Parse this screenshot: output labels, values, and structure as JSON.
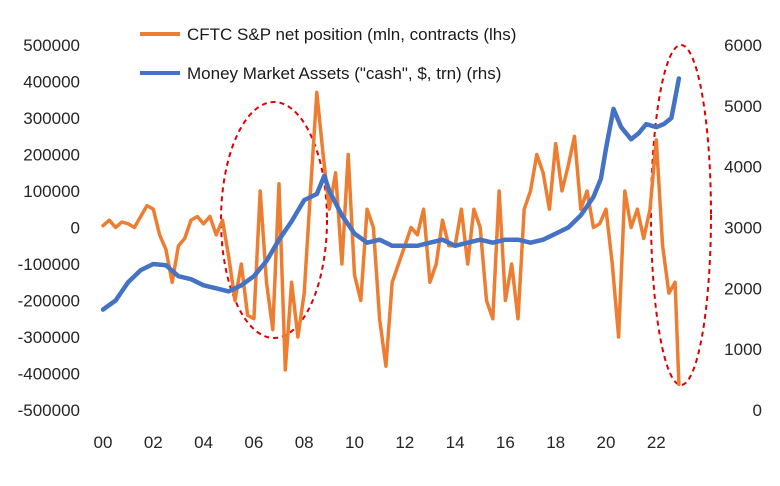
{
  "chart_data": {
    "type": "line",
    "title": "",
    "xlabel": "",
    "ylabel_left": "",
    "ylabel_right": "",
    "x_ticks": [
      "00",
      "02",
      "04",
      "06",
      "08",
      "10",
      "12",
      "14",
      "16",
      "18",
      "20",
      "22"
    ],
    "x_tick_years": [
      2000,
      2002,
      2004,
      2006,
      2008,
      2010,
      2012,
      2014,
      2016,
      2018,
      2020,
      2022
    ],
    "x_range": [
      2000,
      2023.5
    ],
    "y_left": {
      "range": [
        -500000,
        500000
      ],
      "ticks": [
        "500000",
        "400000",
        "300000",
        "200000",
        "100000",
        "0",
        "-100000",
        "-200000",
        "-300000",
        "-400000",
        "-500000"
      ],
      "tick_values": [
        500000,
        400000,
        300000,
        200000,
        100000,
        0,
        -100000,
        -200000,
        -300000,
        -400000,
        -500000
      ]
    },
    "y_right": {
      "range": [
        0,
        6000
      ],
      "ticks": [
        "6000",
        "5000",
        "4000",
        "3000",
        "2000",
        "1000",
        "0"
      ],
      "tick_values": [
        6000,
        5000,
        4000,
        3000,
        2000,
        1000,
        0
      ]
    },
    "grid": false,
    "legend_position": "top",
    "series": [
      {
        "name": "CFTC S&P net position (mln, contracts (lhs)",
        "axis": "left",
        "color": "#ED7D31",
        "x": [
          2000.0,
          2000.25,
          2000.5,
          2000.75,
          2001.0,
          2001.25,
          2001.5,
          2001.75,
          2002.0,
          2002.25,
          2002.5,
          2002.75,
          2003.0,
          2003.25,
          2003.5,
          2003.75,
          2004.0,
          2004.25,
          2004.5,
          2004.75,
          2005.0,
          2005.25,
          2005.5,
          2005.75,
          2006.0,
          2006.25,
          2006.5,
          2006.75,
          2007.0,
          2007.25,
          2007.5,
          2007.75,
          2008.0,
          2008.25,
          2008.5,
          2008.75,
          2009.0,
          2009.25,
          2009.5,
          2009.75,
          2010.0,
          2010.25,
          2010.5,
          2010.75,
          2011.0,
          2011.25,
          2011.5,
          2011.75,
          2012.0,
          2012.25,
          2012.5,
          2012.75,
          2013.0,
          2013.25,
          2013.5,
          2013.75,
          2014.0,
          2014.25,
          2014.5,
          2014.75,
          2015.0,
          2015.25,
          2015.5,
          2015.75,
          2016.0,
          2016.25,
          2016.5,
          2016.75,
          2017.0,
          2017.25,
          2017.5,
          2017.75,
          2018.0,
          2018.25,
          2018.5,
          2018.75,
          2019.0,
          2019.25,
          2019.5,
          2019.75,
          2020.0,
          2020.25,
          2020.5,
          2020.75,
          2021.0,
          2021.25,
          2021.5,
          2021.75,
          2022.0,
          2022.25,
          2022.5,
          2022.75,
          2022.9
        ],
        "values": [
          5000,
          20000,
          0,
          15000,
          10000,
          0,
          30000,
          60000,
          50000,
          -20000,
          -60000,
          -150000,
          -50000,
          -30000,
          20000,
          30000,
          10000,
          30000,
          -20000,
          20000,
          -80000,
          -200000,
          -100000,
          -240000,
          -250000,
          100000,
          -150000,
          -280000,
          120000,
          -390000,
          -150000,
          -300000,
          -180000,
          100000,
          370000,
          200000,
          50000,
          150000,
          -100000,
          200000,
          -130000,
          -200000,
          50000,
          0,
          -250000,
          -380000,
          -150000,
          -100000,
          -50000,
          0,
          -20000,
          50000,
          -150000,
          -100000,
          20000,
          -50000,
          -50000,
          50000,
          -100000,
          50000,
          0,
          -200000,
          -250000,
          100000,
          -200000,
          -100000,
          -250000,
          50000,
          100000,
          200000,
          150000,
          50000,
          230000,
          100000,
          170000,
          250000,
          50000,
          100000,
          0,
          10000,
          50000,
          -100000,
          -300000,
          100000,
          0,
          50000,
          -30000,
          50000,
          240000,
          -50000,
          -180000,
          -150000,
          -430000
        ]
      },
      {
        "name": "Money Market Assets (\"cash\", $, trn) (rhs)",
        "axis": "right",
        "color": "#4472C4",
        "x": [
          2000.0,
          2000.5,
          2001.0,
          2001.5,
          2002.0,
          2002.5,
          2003.0,
          2003.5,
          2004.0,
          2004.5,
          2005.0,
          2005.5,
          2006.0,
          2006.5,
          2007.0,
          2007.5,
          2008.0,
          2008.5,
          2008.8,
          2009.0,
          2009.5,
          2010.0,
          2010.5,
          2011.0,
          2011.5,
          2012.0,
          2012.5,
          2013.0,
          2013.5,
          2014.0,
          2014.5,
          2015.0,
          2015.5,
          2016.0,
          2016.5,
          2017.0,
          2017.5,
          2018.0,
          2018.5,
          2019.0,
          2019.5,
          2019.8,
          2020.0,
          2020.3,
          2020.6,
          2021.0,
          2021.3,
          2021.6,
          2022.0,
          2022.3,
          2022.6,
          2022.9
        ],
        "values": [
          1650,
          1800,
          2100,
          2300,
          2400,
          2380,
          2200,
          2150,
          2050,
          2000,
          1950,
          2050,
          2200,
          2450,
          2800,
          3100,
          3450,
          3550,
          3850,
          3600,
          3200,
          2900,
          2750,
          2800,
          2700,
          2700,
          2700,
          2750,
          2800,
          2700,
          2750,
          2800,
          2750,
          2800,
          2800,
          2750,
          2800,
          2900,
          3000,
          3200,
          3500,
          3800,
          4300,
          4950,
          4650,
          4450,
          4550,
          4700,
          4650,
          4700,
          4800,
          5450
        ]
      }
    ],
    "annotations": [
      {
        "type": "ellipse",
        "style": "dashed",
        "color": "#E00000",
        "target": "2005-2008"
      },
      {
        "type": "ellipse",
        "style": "dashed",
        "color": "#E00000",
        "target": "2022"
      }
    ]
  }
}
